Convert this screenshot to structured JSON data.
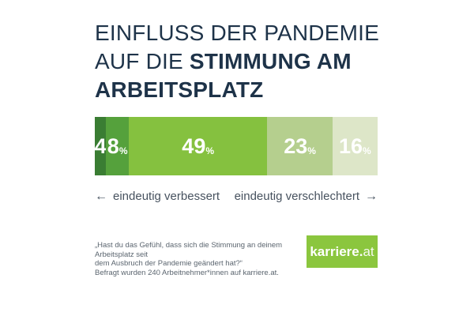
{
  "title": {
    "line1": "EINFLUSS DER PANDEMIE",
    "line2_light": "AUF DIE ",
    "line2_bold": "STIMMUNG AM",
    "line3_bold": "ARBEITSPLATZ",
    "color": "#1e3349"
  },
  "chart_data": {
    "type": "bar",
    "variant": "horizontal-stacked",
    "title": "Einfluss der Pandemie auf die Stimmung am Arbeitsplatz",
    "unit": "%",
    "values": [
      4,
      8,
      49,
      23,
      16
    ],
    "xlim": [
      0,
      100
    ],
    "legend": "none",
    "segments": [
      {
        "label": "4",
        "value": 4,
        "show_percent": false,
        "color": "#3a7d33"
      },
      {
        "label": "8",
        "value": 8,
        "show_percent": true,
        "color": "#55a13c"
      },
      {
        "label": "49",
        "value": 49,
        "show_percent": true,
        "color": "#85c13f"
      },
      {
        "label": "23",
        "value": 23,
        "show_percent": true,
        "color": "#b5cf8e"
      },
      {
        "label": "16",
        "value": 16,
        "show_percent": true,
        "color": "#dde6c8"
      }
    ],
    "scale": {
      "left_label": "eindeutig verbessert",
      "right_label": "eindeutig verschlechtert"
    }
  },
  "axis": {
    "left_arrow": "←",
    "left_label": "eindeutig verbessert",
    "right_label": "eindeutig verschlechtert",
    "right_arrow": "→"
  },
  "footer": {
    "note": "„Hast du das Gefühl, dass sich die Stimmung an deinem Arbeitsplatz seit\ndem Ausbruch der Pandemie geändert hat?“\nBefragt wurden 240 Arbeitnehmer*innen auf karriere.at.",
    "logo": {
      "bold": "karriere.",
      "light": "at",
      "background": "#8bc63e"
    }
  }
}
